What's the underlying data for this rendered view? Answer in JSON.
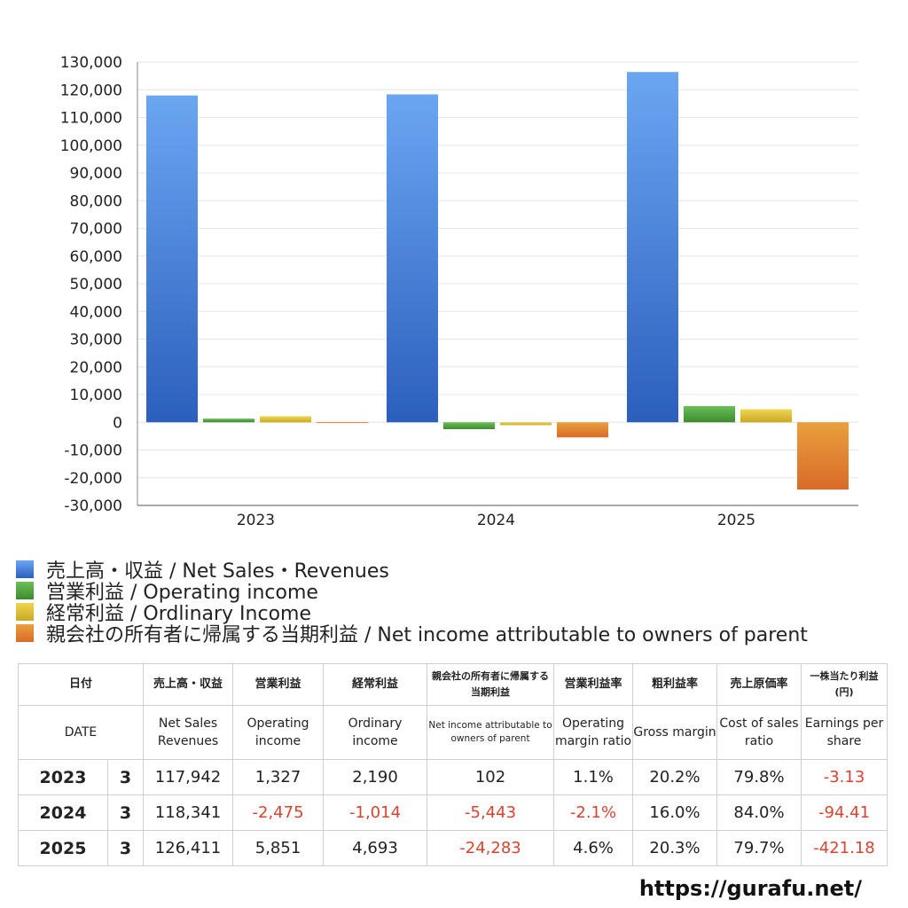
{
  "chart_data": {
    "type": "bar",
    "categories": [
      "2023",
      "2024",
      "2025"
    ],
    "series": [
      {
        "name": "売上高・収益 / Net Sales・Revenues",
        "values": [
          117942,
          118341,
          126411
        ],
        "color_top": "#6ba6f2",
        "color_bottom": "#2c5fbd"
      },
      {
        "name": "営業利益 / Operating income",
        "values": [
          1327,
          -2475,
          5851
        ],
        "color_top": "#6bbf59",
        "color_bottom": "#3d8a2e"
      },
      {
        "name": "経常利益 / Ordlinary Income",
        "values": [
          2190,
          -1014,
          4693
        ],
        "color_top": "#f0d54f",
        "color_bottom": "#c9a825"
      },
      {
        "name": "親会社の所有者に帰属する当期利益 / Net income attributable to owners of parent",
        "values": [
          102,
          -5443,
          -24283
        ],
        "color_top": "#e9a03c",
        "color_bottom": "#d96a2a"
      }
    ],
    "ylim": [
      -30000,
      130000
    ],
    "yticks": [
      "130,000",
      "120,000",
      "110,000",
      "100,000",
      "90,000",
      "80,000",
      "70,000",
      "60,000",
      "50,000",
      "40,000",
      "30,000",
      "20,000",
      "10,000",
      "0",
      "-10,000",
      "-20,000",
      "-30,000"
    ],
    "grid": true,
    "legend_position": "bottom-left"
  },
  "table": {
    "headers_ja": [
      "日付",
      "売上高・収益",
      "営業利益",
      "経常利益",
      "親会社の所有者に帰属する当期利益",
      "営業利益率",
      "粗利益率",
      "売上原価率",
      "一株当たり利益 (円)"
    ],
    "headers_en": [
      "DATE",
      "Net Sales Revenues",
      "Operating income",
      "Ordinary income",
      "Net income attributable to owners of parent",
      "Operating margin ratio",
      "Gross margin",
      "Cost of sales ratio",
      "Earnings per share"
    ],
    "rows": [
      {
        "year": "2023",
        "month": "3",
        "cells": [
          "117,942",
          "1,327",
          "2,190",
          "102",
          "1.1%",
          "20.2%",
          "79.8%",
          "-3.13"
        ]
      },
      {
        "year": "2024",
        "month": "3",
        "cells": [
          "118,341",
          "-2,475",
          "-1,014",
          "-5,443",
          "-2.1%",
          "16.0%",
          "84.0%",
          "-94.41"
        ]
      },
      {
        "year": "2025",
        "month": "3",
        "cells": [
          "126,411",
          "5,851",
          "4,693",
          "-24,283",
          "4.6%",
          "20.3%",
          "79.7%",
          "-421.18"
        ]
      }
    ]
  },
  "footer": {
    "url": "https://gurafu.net/"
  }
}
